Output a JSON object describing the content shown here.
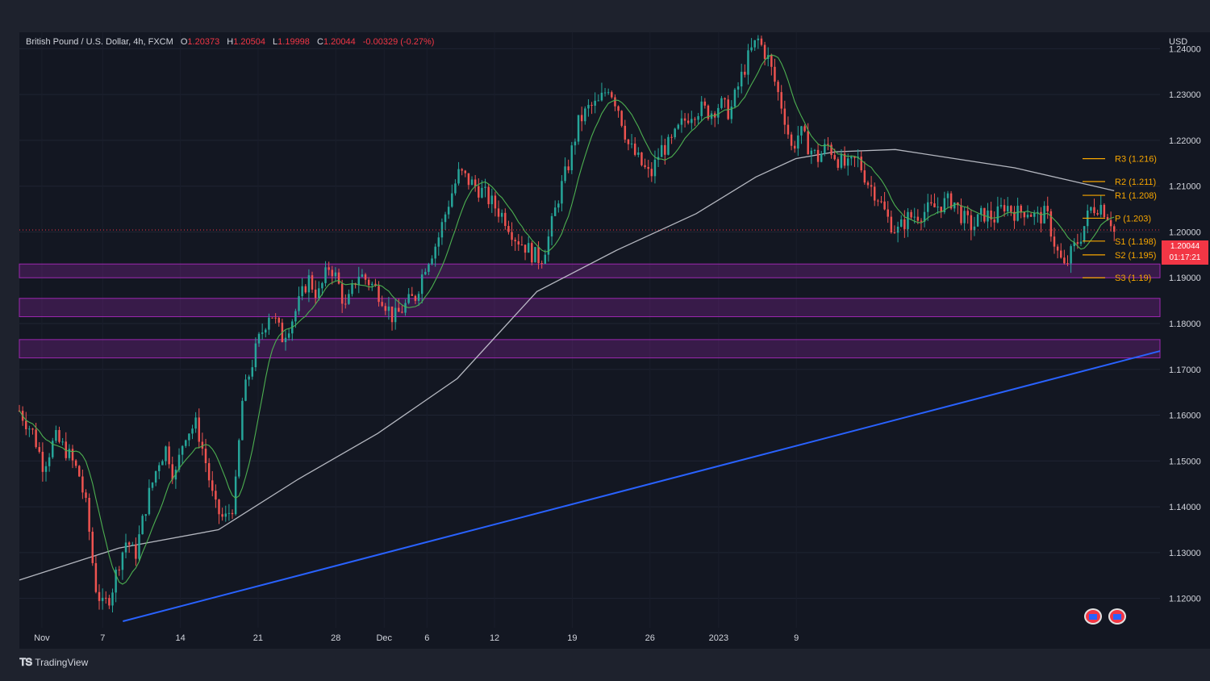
{
  "legend": {
    "symbol": "British Pound / U.S. Dollar, 4h, FXCM",
    "open_label": "O",
    "open": "1.20373",
    "high_label": "H",
    "high": "1.20504",
    "low_label": "L",
    "low": "1.19998",
    "close_label": "C",
    "close": "1.20044",
    "change": "-0.00329 (-0.27%)"
  },
  "currency": "USD",
  "brand": "TradingView",
  "price_tag": {
    "price": "1.20044",
    "countdown": "01:17:21"
  },
  "colors": {
    "bull": "#26a69a",
    "bear": "#ef5350",
    "trendline": "#2962ff",
    "zone": "#9c27b0",
    "pivot": "#f7a600",
    "ma_fast": "#4caf50",
    "ma_slow": "#d1d4dc"
  },
  "chart_data": {
    "type": "candlestick",
    "instrument": "GBP/USD",
    "timeframe": "4h",
    "ylim": [
      1.115,
      1.245
    ],
    "y_ticks": [
      "1.24000",
      "1.23000",
      "1.22000",
      "1.21000",
      "1.20000",
      "1.19000",
      "1.18000",
      "1.17000",
      "1.16000",
      "1.15000",
      "1.14000",
      "1.13000",
      "1.12000"
    ],
    "x_ticks": [
      "Nov",
      "7",
      "14",
      "21",
      "28",
      "Dec",
      "6",
      "12",
      "19",
      "26",
      "2023",
      "9"
    ],
    "close_path": [
      [
        0,
        1.161
      ],
      [
        0.7,
        1.156
      ],
      [
        1.2,
        1.149
      ],
      [
        1.8,
        1.155
      ],
      [
        2.4,
        1.152
      ],
      [
        3,
        1.147
      ],
      [
        3.4,
        1.139
      ],
      [
        3.8,
        1.123
      ],
      [
        4.2,
        1.118
      ],
      [
        4.6,
        1.121
      ],
      [
        5,
        1.128
      ],
      [
        5.4,
        1.133
      ],
      [
        5.8,
        1.129
      ],
      [
        6.4,
        1.141
      ],
      [
        7,
        1.15
      ],
      [
        7.4,
        1.153
      ],
      [
        7.8,
        1.146
      ],
      [
        8.3,
        1.156
      ],
      [
        8.9,
        1.158
      ],
      [
        9.4,
        1.149
      ],
      [
        9.8,
        1.14
      ],
      [
        10.3,
        1.137
      ],
      [
        10.8,
        1.141
      ],
      [
        11.2,
        1.163
      ],
      [
        11.6,
        1.17
      ],
      [
        12,
        1.176
      ],
      [
        12.6,
        1.183
      ],
      [
        13.2,
        1.177
      ],
      [
        13.7,
        1.181
      ],
      [
        14.1,
        1.185
      ],
      [
        14.5,
        1.19
      ],
      [
        15,
        1.186
      ],
      [
        15.6,
        1.193
      ],
      [
        16,
        1.189
      ],
      [
        16.4,
        1.183
      ],
      [
        17,
        1.191
      ],
      [
        17.6,
        1.189
      ],
      [
        18.2,
        1.186
      ],
      [
        18.8,
        1.181
      ],
      [
        19.4,
        1.184
      ],
      [
        19.9,
        1.186
      ],
      [
        20.4,
        1.193
      ],
      [
        21,
        1.198
      ],
      [
        21.6,
        1.207
      ],
      [
        22.1,
        1.213
      ],
      [
        22.6,
        1.211
      ],
      [
        23.2,
        1.209
      ],
      [
        23.8,
        1.206
      ],
      [
        24.4,
        1.203
      ],
      [
        24.9,
        1.199
      ],
      [
        25.4,
        1.197
      ],
      [
        25.8,
        1.195
      ],
      [
        26.2,
        1.194
      ],
      [
        26.6,
        1.199
      ],
      [
        27.1,
        1.208
      ],
      [
        27.6,
        1.215
      ],
      [
        28.1,
        1.224
      ],
      [
        28.6,
        1.227
      ],
      [
        29.1,
        1.228
      ],
      [
        29.6,
        1.232
      ],
      [
        30.1,
        1.227
      ],
      [
        30.6,
        1.219
      ],
      [
        31.2,
        1.215
      ],
      [
        31.7,
        1.212
      ],
      [
        32.2,
        1.218
      ],
      [
        32.7,
        1.219
      ],
      [
        33.2,
        1.223
      ],
      [
        33.7,
        1.226
      ],
      [
        34.2,
        1.227
      ],
      [
        34.7,
        1.226
      ],
      [
        35.2,
        1.228
      ],
      [
        35.7,
        1.226
      ],
      [
        36.2,
        1.233
      ],
      [
        36.7,
        1.239
      ],
      [
        37.1,
        1.242
      ],
      [
        37.6,
        1.238
      ],
      [
        38,
        1.232
      ],
      [
        38.4,
        1.226
      ],
      [
        38.8,
        1.218
      ],
      [
        39.2,
        1.222
      ],
      [
        39.6,
        1.219
      ],
      [
        40.1,
        1.216
      ],
      [
        40.6,
        1.219
      ],
      [
        41.1,
        1.216
      ],
      [
        41.6,
        1.214
      ],
      [
        42.1,
        1.216
      ],
      [
        42.6,
        1.211
      ],
      [
        43.1,
        1.208
      ],
      [
        43.6,
        1.203
      ],
      [
        44.1,
        1.2
      ],
      [
        44.6,
        1.203
      ],
      [
        45.2,
        1.204
      ],
      [
        45.8,
        1.205
      ],
      [
        46.3,
        1.206
      ],
      [
        46.9,
        1.207
      ],
      [
        47.4,
        1.203
      ],
      [
        47.9,
        1.201
      ],
      [
        48.4,
        1.204
      ],
      [
        49,
        1.203
      ],
      [
        49.5,
        1.206
      ],
      [
        50.1,
        1.204
      ],
      [
        50.6,
        1.205
      ],
      [
        51.1,
        1.203
      ],
      [
        51.6,
        1.204
      ],
      [
        52.1,
        1.196
      ],
      [
        52.5,
        1.192
      ],
      [
        52.9,
        1.196
      ],
      [
        53.3,
        1.199
      ],
      [
        53.8,
        1.205
      ],
      [
        54.3,
        1.206
      ],
      [
        54.8,
        1.203
      ],
      [
        55,
        1.2
      ]
    ],
    "ma_slow": [
      [
        0,
        1.124
      ],
      [
        5,
        1.131
      ],
      [
        10,
        1.135
      ],
      [
        14,
        1.146
      ],
      [
        18,
        1.156
      ],
      [
        22,
        1.168
      ],
      [
        26,
        1.187
      ],
      [
        30,
        1.196
      ],
      [
        34,
        1.204
      ],
      [
        37,
        1.212
      ],
      [
        39,
        1.216
      ],
      [
        41,
        1.2175
      ],
      [
        44,
        1.218
      ],
      [
        47,
        1.216
      ],
      [
        50,
        1.214
      ],
      [
        53,
        1.211
      ],
      [
        55,
        1.209
      ]
    ],
    "support_resistance_zones": [
      {
        "low": 1.19,
        "high": 1.193
      },
      {
        "low": 1.1815,
        "high": 1.1855
      },
      {
        "low": 1.1725,
        "high": 1.1765
      }
    ],
    "trendline": {
      "start": [
        5.2,
        1.115
      ],
      "end": [
        57.3,
        1.174
      ]
    },
    "pivot_levels": [
      {
        "label": "R3 (1.216)",
        "value": 1.216
      },
      {
        "label": "R2 (1.211)",
        "value": 1.211
      },
      {
        "label": "R1 (1.208)",
        "value": 1.208
      },
      {
        "label": "P (1.203)",
        "value": 1.203
      },
      {
        "label": "S1 (1.198)",
        "value": 1.198
      },
      {
        "label": "S2 (1.195)",
        "value": 1.195
      },
      {
        "label": "S3 (1.19)",
        "value": 1.19
      }
    ],
    "last_price": 1.20044
  }
}
